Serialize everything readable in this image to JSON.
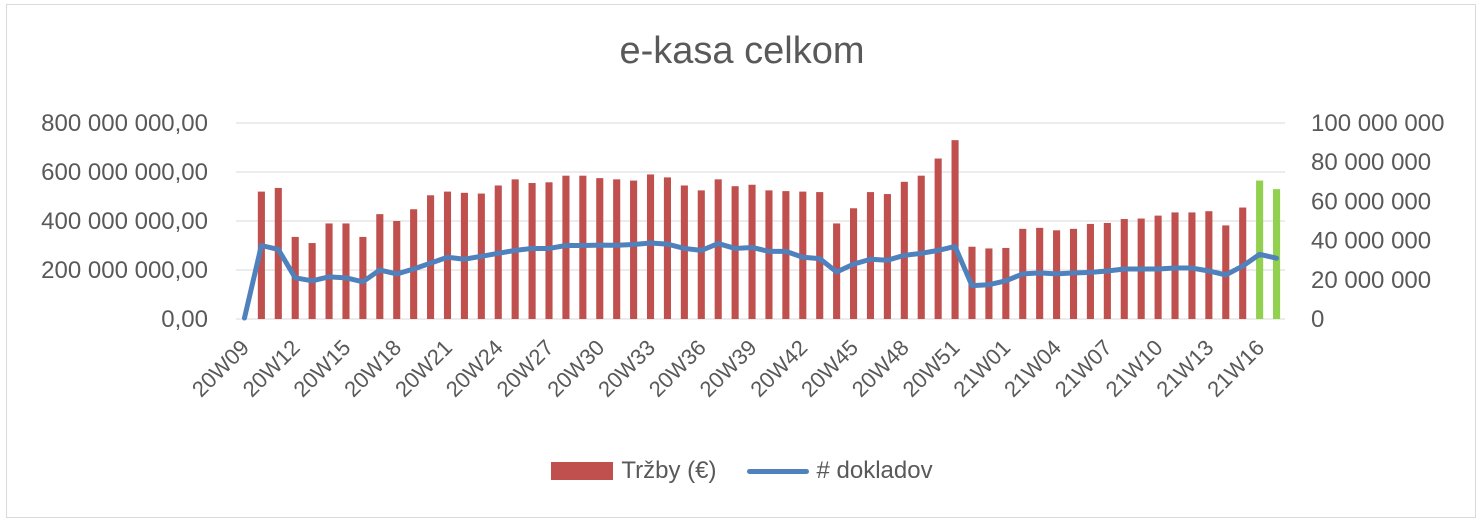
{
  "chart_data": {
    "type": "bar",
    "title": "e-kasa celkom",
    "categories": [
      "20W09",
      "20W10",
      "20W11",
      "20W12",
      "20W13",
      "20W14",
      "20W15",
      "20W16",
      "20W17",
      "20W18",
      "20W19",
      "20W20",
      "20W21",
      "20W22",
      "20W23",
      "20W24",
      "20W25",
      "20W26",
      "20W27",
      "20W28",
      "20W29",
      "20W30",
      "20W31",
      "20W32",
      "20W33",
      "20W34",
      "20W35",
      "20W36",
      "20W37",
      "20W38",
      "20W39",
      "20W40",
      "20W41",
      "20W42",
      "20W43",
      "20W44",
      "20W45",
      "20W46",
      "20W47",
      "20W48",
      "20W49",
      "20W50",
      "20W51",
      "20W52",
      "20W53",
      "21W01",
      "21W02",
      "21W03",
      "21W04",
      "21W05",
      "21W06",
      "21W07",
      "21W08",
      "21W09",
      "21W10",
      "21W11",
      "21W12",
      "21W13",
      "21W14",
      "21W15",
      "21W16",
      "21W17"
    ],
    "x_tick_labels": [
      "20W09",
      "20W12",
      "20W15",
      "20W18",
      "20W21",
      "20W24",
      "20W27",
      "20W30",
      "20W33",
      "20W36",
      "20W39",
      "20W42",
      "20W45",
      "20W48",
      "20W51",
      "21W01",
      "21W04",
      "21W07",
      "21W10",
      "21W13",
      "21W16"
    ],
    "series": [
      {
        "name": "Tržby (€)",
        "type": "bar",
        "axis": "left",
        "color": "#c0504d",
        "highlight_color": "#92d050",
        "highlight_last": 2,
        "values": [
          0,
          520000000,
          535000000,
          335000000,
          310000000,
          390000000,
          390000000,
          335000000,
          428000000,
          400000000,
          448000000,
          505000000,
          520000000,
          515000000,
          512000000,
          545000000,
          570000000,
          555000000,
          558000000,
          585000000,
          585000000,
          575000000,
          570000000,
          565000000,
          590000000,
          578000000,
          545000000,
          525000000,
          570000000,
          542000000,
          548000000,
          525000000,
          522000000,
          520000000,
          518000000,
          390000000,
          452000000,
          518000000,
          510000000,
          560000000,
          585000000,
          655000000,
          730000000,
          295000000,
          288000000,
          290000000,
          368000000,
          372000000,
          362000000,
          368000000,
          388000000,
          392000000,
          408000000,
          410000000,
          422000000,
          435000000,
          435000000,
          440000000,
          382000000,
          455000000,
          565000000,
          530000000
        ]
      },
      {
        "name": "# dokladov",
        "type": "line",
        "axis": "right",
        "color": "#4f81bd",
        "values": [
          500000,
          37500000,
          35500000,
          21000000,
          19500000,
          21500000,
          21000000,
          19000000,
          25000000,
          23000000,
          25500000,
          28500000,
          31500000,
          30500000,
          32000000,
          33500000,
          35000000,
          36000000,
          36000000,
          37500000,
          37500000,
          37700000,
          37600000,
          38000000,
          38800000,
          38200000,
          36000000,
          35000000,
          38500000,
          36000000,
          36500000,
          34500000,
          34500000,
          31500000,
          30800000,
          24000000,
          28000000,
          30500000,
          30000000,
          32500000,
          33500000,
          35000000,
          37000000,
          17000000,
          17500000,
          19500000,
          23000000,
          23500000,
          23000000,
          23500000,
          23800000,
          24500000,
          25500000,
          25500000,
          25500000,
          26000000,
          26000000,
          24500000,
          22500000,
          27000000,
          33000000,
          31000000
        ]
      }
    ],
    "y_left": {
      "min": 0,
      "max": 800000000,
      "ticks": [
        "0,00",
        "200 000 000,00",
        "400 000 000,00",
        "600 000 000,00",
        "800 000 000,00"
      ]
    },
    "y_right": {
      "min": 0,
      "max": 100000000,
      "ticks": [
        "0",
        "20 000 000",
        "40 000 000",
        "60 000 000",
        "80 000 000",
        "100 000 000"
      ]
    },
    "grid": true,
    "legend_position": "bottom"
  },
  "legend": {
    "bar_label": "Tržby (€)",
    "line_label": "# dokladov"
  }
}
